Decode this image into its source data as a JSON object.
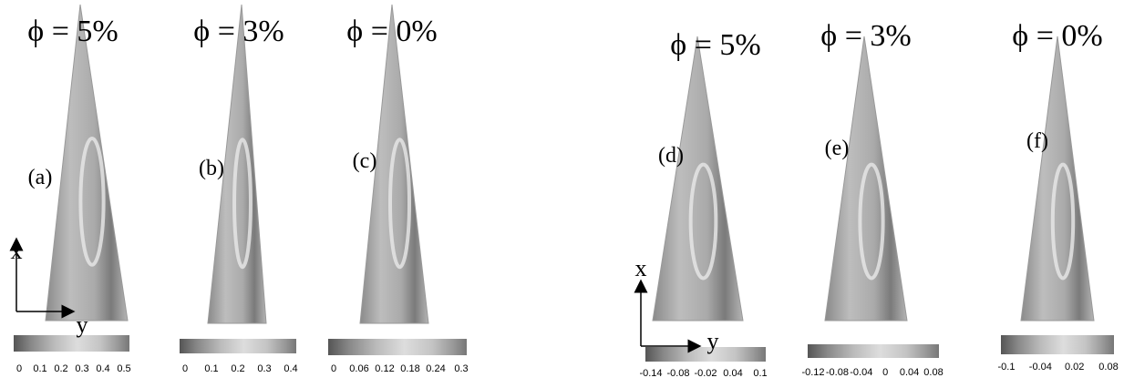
{
  "panels": [
    {
      "phi": "ϕ = 5%",
      "label": "(a)",
      "ticks": [
        "0",
        "0.1",
        "0.2",
        "0.3",
        "0.4",
        "0.5"
      ]
    },
    {
      "phi": "ϕ = 3%",
      "label": "(b)",
      "ticks": [
        "0",
        "0.1",
        "0.2",
        "0.3",
        "0.4"
      ]
    },
    {
      "phi": "ϕ = 0%",
      "label": "(c)",
      "ticks": [
        "0",
        "0.06",
        "0.12",
        "0.18",
        "0.24",
        "0.3"
      ]
    },
    {
      "phi": "ϕ = 5%",
      "label": "(d)",
      "ticks": [
        "-0.14",
        "-0.08",
        "-0.02",
        "0.04",
        "0.1"
      ]
    },
    {
      "phi": "ϕ = 3%",
      "label": "(e)",
      "ticks": [
        "-0.12",
        "-0.08",
        "-0.04",
        "0",
        "0.04",
        "0.08"
      ]
    },
    {
      "phi": "ϕ = 0%",
      "label": "(f)",
      "ticks": [
        "-0.1",
        "-0.04",
        "0.02",
        "0.08"
      ]
    }
  ],
  "axes": [
    {
      "x": "x",
      "y": "y"
    },
    {
      "x": "x",
      "y": "y"
    }
  ]
}
